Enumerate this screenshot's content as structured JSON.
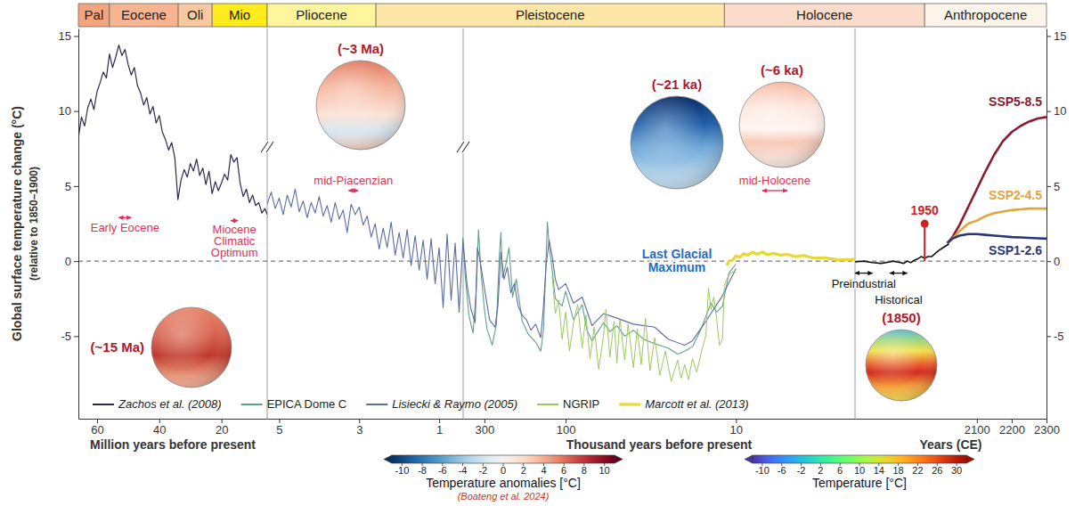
{
  "chart_data": {
    "type": "line",
    "ylabel": "Global surface temperature change (°C)",
    "ylabel_sub": "(relative to 1850–1900)",
    "ylim": [
      -10.5,
      15.5
    ],
    "yticks": [
      -5,
      0,
      5,
      10,
      15
    ],
    "grid": false,
    "legend": "bottom",
    "hline": 0,
    "segments": [
      {
        "xlabel": "Million years before present",
        "xlim": [
          66,
          5.3
        ],
        "xticks": [
          60,
          40,
          20
        ]
      },
      {
        "xlim": [
          5.3,
          0.4
        ],
        "xticks": [
          5,
          3,
          1
        ]
      },
      {
        "xlabel": "Thousand years before present",
        "log": "x",
        "xlim": [
          400,
          2
        ],
        "xticks": [
          300,
          100,
          10
        ]
      },
      {
        "xlabel": "Years (CE)",
        "xlim": [
          1750,
          2300
        ],
        "xticks": [
          2100,
          2200,
          2300
        ]
      }
    ],
    "epochs": [
      {
        "name": "Pal",
        "color": "#f4a47c",
        "from": {
          "segment": 0,
          "value": 66
        },
        "to": {
          "segment": 0,
          "value": 56
        }
      },
      {
        "name": "Eocene",
        "color": "#f7b48e",
        "from": {
          "segment": 0,
          "value": 56
        },
        "to": {
          "segment": 0,
          "value": 33.9
        }
      },
      {
        "name": "Oli",
        "color": "#f9c89f",
        "from": {
          "segment": 0,
          "value": 33.9
        },
        "to": {
          "segment": 0,
          "value": 23
        }
      },
      {
        "name": "Mio",
        "color": "#ffec1a",
        "from": {
          "segment": 0,
          "value": 23
        },
        "to": {
          "segment": 0,
          "value": 5.3
        }
      },
      {
        "name": "Pliocene",
        "color": "#fff59d",
        "from": {
          "segment": 1,
          "value": 5.3
        },
        "to": {
          "segment": 1,
          "value": 2.58
        }
      },
      {
        "name": "Pleistocene",
        "color": "#fee6a6",
        "from": {
          "segment": 1,
          "value": 2.58
        },
        "to": {
          "segment": 2,
          "value": 11.7
        }
      },
      {
        "name": "Holocene",
        "color": "#fbdccb",
        "from": {
          "segment": 2,
          "value": 11.7
        },
        "to": {
          "segment": 3,
          "value": 1950
        }
      },
      {
        "name": "Anthropocene",
        "color": "#fdf4ea",
        "from": {
          "segment": 3,
          "value": 1950
        },
        "to": {
          "segment": 3,
          "value": 2300
        }
      }
    ],
    "series": [
      {
        "name": "Zachos et al. (2008)",
        "color": "#2b2a52",
        "parts": [
          {
            "segment": 0,
            "x": [
              66,
              65,
              64,
              63,
              62,
              61,
              60,
              59,
              58,
              57,
              56,
              55,
              54,
              53,
              52,
              51,
              50,
              49,
              48,
              47,
              46,
              45,
              44,
              43,
              42,
              41,
              40,
              39,
              38,
              37,
              36,
              35,
              34,
              33,
              32,
              31,
              30,
              29,
              28,
              27,
              26,
              25,
              24,
              23,
              22,
              21,
              20,
              19,
              18,
              17,
              16,
              15,
              14,
              13,
              12,
              11,
              10,
              9,
              8,
              7,
              6,
              5.3
            ],
            "values": [
              8.2,
              9.6,
              9.0,
              10.2,
              10.8,
              10.1,
              11.3,
              11.9,
              12.6,
              12.2,
              13.8,
              12.9,
              13.6,
              14.4,
              13.7,
              14.1,
              13.1,
              12.4,
              12.9,
              11.7,
              11.2,
              10.4,
              10.9,
              9.8,
              10.3,
              9.2,
              9.7,
              8.6,
              8.1,
              7.4,
              7.9,
              6.9,
              4.1,
              5.4,
              6.1,
              5.6,
              6.5,
              6.0,
              6.8,
              5.7,
              6.2,
              5.1,
              6.0,
              4.5,
              5.3,
              4.7,
              5.2,
              5.8,
              5.4,
              7.1,
              6.6,
              6.9,
              5.2,
              4.3,
              4.8,
              3.9,
              4.4,
              3.7,
              3.9,
              3.2,
              3.5,
              3.1
            ]
          }
        ]
      },
      {
        "name": "EPICA Dome C",
        "color": "#5f9f8c",
        "parts": [
          {
            "segment": 2,
            "x": [
              400,
              390,
              370,
              350,
              335,
              325,
              315,
              300,
              290,
              270,
              255,
              245,
              240,
              235,
              225,
              215,
              205,
              195,
              180,
              165,
              150,
              140,
              135,
              130,
              128,
              125,
              120,
              115,
              105,
              100,
              90,
              80,
              75,
              70,
              60,
              55,
              50,
              45,
              40,
              35,
              30,
              25,
              22,
              20,
              18,
              16,
              14,
              13,
              12,
              11,
              10
            ],
            "values": [
              1.5,
              -0.8,
              -3.6,
              -4.8,
              -2.0,
              2.1,
              -0.6,
              -3.2,
              -4.5,
              -5.6,
              -4.2,
              0.4,
              1.9,
              -1.1,
              -0.3,
              0.9,
              -2.4,
              -1.2,
              -4.0,
              -4.9,
              -5.4,
              -6.0,
              -4.6,
              0.5,
              2.6,
              1.0,
              -0.6,
              -2.5,
              -3.0,
              -2.0,
              -3.9,
              -2.9,
              -4.6,
              -5.3,
              -4.1,
              -4.7,
              -4.3,
              -5.0,
              -4.6,
              -5.2,
              -5.5,
              -5.8,
              -6.2,
              -6.0,
              -5.7,
              -4.5,
              -2.8,
              -3.4,
              -3.0,
              -0.8,
              -0.2
            ]
          }
        ]
      },
      {
        "name": "Lisiecki & Raymo (2005)",
        "color": "#5b6ca3",
        "parts": [
          {
            "segment": 1,
            "x": [
              5.3,
              5.2,
              5.1,
              5.0,
              4.9,
              4.8,
              4.7,
              4.6,
              4.5,
              4.4,
              4.3,
              4.2,
              4.1,
              4.0,
              3.9,
              3.8,
              3.7,
              3.6,
              3.5,
              3.4,
              3.3,
              3.2,
              3.1,
              3.0,
              2.9,
              2.8,
              2.7,
              2.6,
              2.5,
              2.4,
              2.3,
              2.2,
              2.1,
              2.0,
              1.9,
              1.8,
              1.7,
              1.6,
              1.5,
              1.4,
              1.3,
              1.2,
              1.1,
              1.0,
              0.9,
              0.8,
              0.7,
              0.6,
              0.5,
              0.4
            ],
            "values": [
              3.8,
              4.6,
              3.5,
              4.2,
              3.1,
              4.4,
              3.6,
              4.8,
              3.3,
              4.0,
              2.9,
              3.9,
              3.2,
              4.3,
              3.0,
              3.7,
              2.6,
              3.9,
              2.8,
              3.4,
              1.9,
              3.8,
              3.1,
              3.6,
              2.4,
              3.0,
              1.6,
              2.5,
              0.8,
              2.2,
              0.9,
              2.6,
              0.4,
              1.9,
              0.2,
              2.1,
              -0.3,
              1.7,
              -0.6,
              1.4,
              -1.2,
              1.5,
              -1.5,
              0.9,
              -3.1,
              1.8,
              -2.6,
              1.2,
              -3.4,
              1.6
            ]
          },
          {
            "segment": 2,
            "x": [
              400,
              380,
              360,
              340,
              330,
              320,
              300,
              280,
              260,
              250,
              240,
              230,
              220,
              210,
              200,
              190,
              180,
              170,
              160,
              150,
              140,
              135,
              130,
              125,
              120,
              115,
              110,
              100,
              90,
              80,
              70,
              60,
              50,
              40,
              30,
              25,
              20,
              18,
              15,
              12,
              10
            ],
            "values": [
              1.2,
              -1.5,
              -3.2,
              -4.1,
              0.9,
              0.2,
              -1.8,
              -3.9,
              -4.4,
              -3.0,
              0.6,
              -1.2,
              -0.4,
              -2.1,
              -1.5,
              -3.0,
              -3.6,
              -3.9,
              -4.6,
              -4.2,
              -5.1,
              -3.0,
              -0.2,
              1.4,
              0.3,
              -1.2,
              -1.9,
              -1.5,
              -2.8,
              -2.4,
              -4.3,
              -3.5,
              -3.8,
              -4.2,
              -4.4,
              -5.2,
              -5.6,
              -5.3,
              -4.0,
              -2.3,
              -0.5
            ]
          }
        ]
      },
      {
        "name": "NGRIP",
        "color": "#9cc760",
        "parts": [
          {
            "segment": 2,
            "x": [
              120,
              115,
              110,
              105,
              100,
              95,
              90,
              85,
              80,
              76,
              72,
              68,
              64,
              60,
              58,
              55,
              52,
              50,
              48,
              45,
              43,
              40,
              38,
              36,
              34,
              32,
              30,
              28,
              26,
              24,
              22,
              21,
              20,
              19,
              18,
              17,
              16,
              15,
              14.5,
              14,
              13.5,
              13,
              12.5,
              12,
              11.7,
              11,
              10
            ],
            "values": [
              -1.0,
              -3.5,
              -2.6,
              -5.2,
              -3.4,
              -6.0,
              -4.1,
              -2.9,
              -5.8,
              -3.6,
              -6.5,
              -4.4,
              -7.2,
              -5.0,
              -3.2,
              -6.4,
              -4.0,
              -6.8,
              -3.9,
              -6.6,
              -4.2,
              -7.1,
              -4.5,
              -6.9,
              -3.8,
              -7.3,
              -5.1,
              -7.6,
              -6.0,
              -8.0,
              -6.6,
              -7.8,
              -6.9,
              -7.9,
              -6.5,
              -7.4,
              -6.1,
              -4.9,
              -1.8,
              -3.2,
              -2.4,
              -3.8,
              -5.6,
              -5.2,
              -1.6,
              -0.9,
              -0.6
            ]
          }
        ]
      },
      {
        "name": "Marcott et al. (2013)",
        "color": "#e6d835",
        "parts": [
          {
            "segment": 2,
            "x": [
              11.3,
              11,
              10.5,
              10,
              9.5,
              9,
              8.5,
              8,
              7.5,
              7,
              6.5,
              6,
              5.5,
              5,
              4.5,
              4,
              3.5,
              3,
              2.5,
              2
            ],
            "values": [
              -0.3,
              0.0,
              0.05,
              0.35,
              0.25,
              0.5,
              0.4,
              0.6,
              0.45,
              0.6,
              0.42,
              0.52,
              0.4,
              0.45,
              0.3,
              0.38,
              0.2,
              0.22,
              0.08,
              0.12
            ]
          }
        ]
      },
      {
        "color": "#111111",
        "parts": [
          {
            "segment": 3,
            "x": [
              1750,
              1775,
              1800,
              1825,
              1850,
              1860,
              1870,
              1880,
              1890,
              1900,
              1910,
              1920,
              1930,
              1940,
              1950,
              1960,
              1970,
              1980,
              1990,
              2000,
              2010,
              2020
            ],
            "values": [
              -0.05,
              0.0,
              -0.1,
              -0.15,
              -0.05,
              0.0,
              -0.05,
              -0.1,
              -0.15,
              0.0,
              -0.1,
              0.05,
              0.15,
              0.3,
              0.2,
              0.3,
              0.3,
              0.5,
              0.7,
              0.85,
              1.0,
              1.15
            ]
          }
        ]
      }
    ],
    "projections": [
      {
        "name": "SSP5-8.5",
        "color": "#8b1a2e",
        "segment": 3,
        "x": [
          2015,
          2030,
          2050,
          2075,
          2100,
          2125,
          2150,
          2175,
          2200,
          2225,
          2250,
          2275,
          2300
        ],
        "values": [
          1.2,
          1.6,
          2.4,
          3.6,
          4.8,
          6.0,
          7.1,
          8.0,
          8.6,
          9.0,
          9.3,
          9.5,
          9.6
        ]
      },
      {
        "name": "SSP2-4.5",
        "color": "#e3a43a",
        "segment": 3,
        "x": [
          2015,
          2030,
          2050,
          2075,
          2100,
          2125,
          2150,
          2175,
          2200,
          2225,
          2250,
          2275,
          2300
        ],
        "values": [
          1.2,
          1.5,
          2.0,
          2.5,
          2.7,
          3.0,
          3.2,
          3.3,
          3.4,
          3.45,
          3.5,
          3.5,
          3.5
        ]
      },
      {
        "name": "SSP1-2.6",
        "color": "#2a3676",
        "segment": 3,
        "x": [
          2015,
          2030,
          2050,
          2075,
          2100,
          2125,
          2150,
          2175,
          2200,
          2225,
          2250,
          2275,
          2300
        ],
        "values": [
          1.2,
          1.5,
          1.7,
          1.8,
          1.8,
          1.75,
          1.7,
          1.65,
          1.6,
          1.58,
          1.55,
          1.52,
          1.5
        ]
      }
    ],
    "annotations": [
      {
        "text": "Early Eocene",
        "segment": 0,
        "from": 53,
        "to": 49,
        "y": 2.9
      },
      {
        "text": "Miocene Climatic Optimum",
        "segment": 0,
        "from": 17,
        "to": 14.7,
        "y": 2.7
      },
      {
        "text": "mid-Piacenzian",
        "segment": 1,
        "from": 3.264,
        "to": 3.025,
        "y": 4.7
      },
      {
        "text": "mid-Holocene",
        "segment": 2,
        "from": 7,
        "to": 5,
        "y": 4.7
      },
      {
        "text": "Preindustrial",
        "segment": 3,
        "from": 1750,
        "to": 1800,
        "y": -0.8
      },
      {
        "text": "Historical",
        "segment": 3,
        "from": 1850,
        "to": 1900,
        "y": -0.8
      }
    ],
    "marker": {
      "segment": 3,
      "value": 1950
    },
    "globes": [
      {
        "label": "(~15 Ma)"
      },
      {
        "label": "(~3 Ma)"
      },
      {
        "label": "(~21 ka)",
        "name": "Last Glacial Maximum"
      },
      {
        "label": "(~6 ka)"
      },
      {
        "label": "(1850)"
      }
    ],
    "colorbars": [
      {
        "title": "Temperature anomalies [°C]",
        "note": "(Boateng et al. 2024)",
        "range": [
          -11,
          11
        ],
        "ticks": [
          -10,
          -8,
          -6,
          -4,
          -2,
          0,
          2,
          4,
          6,
          8,
          10
        ]
      },
      {
        "title": "Temperature [°C]",
        "range": [
          -12,
          32
        ],
        "ticks": [
          -10,
          -6,
          -2,
          2,
          6,
          10,
          14,
          18,
          22,
          26,
          30
        ]
      }
    ]
  }
}
